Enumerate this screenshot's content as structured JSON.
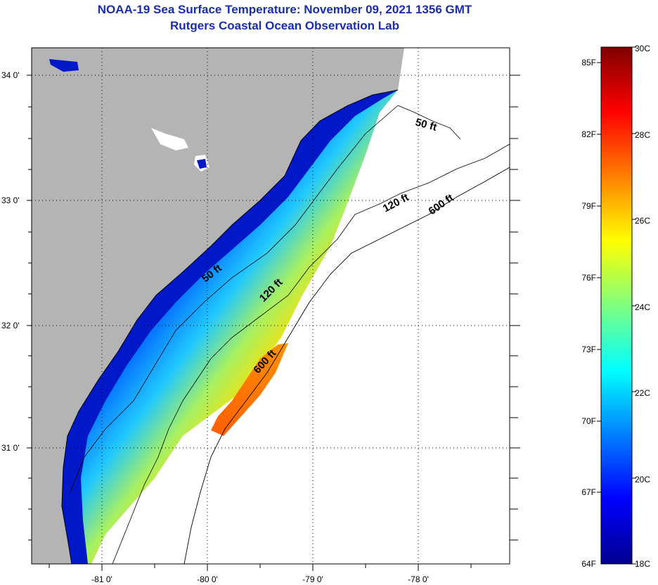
{
  "header": {
    "title": "NOAA-19 Sea Surface Temperature:  November 09, 2021 1356 GMT",
    "subtitle": "Rutgers Coastal Ocean Observation Lab"
  },
  "map": {
    "lat_ticks": [
      "34 0'",
      "33 0'",
      "32 0'",
      "31 0'"
    ],
    "lon_ticks": [
      "-81 0'",
      "-80 0'",
      "-79 0'",
      "-78 0'"
    ],
    "depth_labels": {
      "d50_north": "50 ft",
      "d120_north": "120 ft",
      "d600_north": "600 ft",
      "d50_mid": "50 ft",
      "d120_mid": "120 ft",
      "d600_mid": "600 ft"
    },
    "colors": {
      "land": "#b4b4b4",
      "cloud": "#ffffff",
      "sst_low": "#00008f",
      "sst_high": "#800000"
    }
  },
  "colorbar": {
    "fahrenheit_labels": [
      "85F",
      "82F",
      "79F",
      "76F",
      "73F",
      "70F",
      "67F",
      "64F"
    ],
    "celsius_labels": [
      "30C",
      "28C",
      "26C",
      "24C",
      "22C",
      "20C",
      "18C"
    ],
    "range_celsius": [
      18,
      30
    ]
  }
}
